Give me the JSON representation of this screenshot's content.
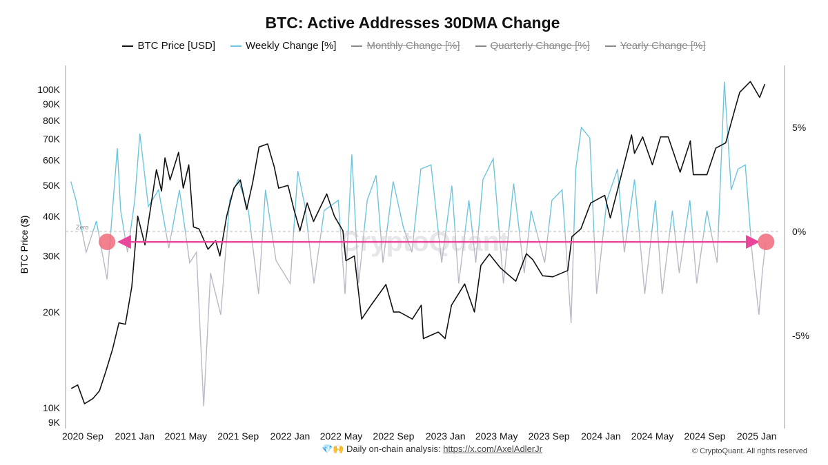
{
  "chart_data": {
    "type": "line",
    "title": "BTC: Active Addresses 30DMA Change",
    "ylabel_left": "BTC Price ($)",
    "y_left_scale": "log",
    "y_left_ticks": [
      "9K",
      "10K",
      "20K",
      "30K",
      "40K",
      "50K",
      "60K",
      "70K",
      "80K",
      "90K",
      "100K"
    ],
    "y_left_tick_values": [
      9000,
      10000,
      20000,
      30000,
      40000,
      50000,
      60000,
      70000,
      80000,
      90000,
      100000
    ],
    "y_left_range": [
      8700,
      119000
    ],
    "y_right_ticks": [
      "5%",
      "0%",
      "-5%"
    ],
    "y_right_tick_values": [
      5,
      0,
      -5
    ],
    "y_right_range": [
      -9.4,
      8
    ],
    "zero_line_label": "Zero",
    "x_ticks": [
      {
        "label": "2020 Sep",
        "date": "2020-09-01"
      },
      {
        "label": "2021 Jan",
        "date": "2021-01-01"
      },
      {
        "label": "2021 May",
        "date": "2021-05-01"
      },
      {
        "label": "2021 Sep",
        "date": "2021-09-01"
      },
      {
        "label": "2022 Jan",
        "date": "2022-01-01"
      },
      {
        "label": "2022 May",
        "date": "2022-05-01"
      },
      {
        "label": "2022 Sep",
        "date": "2022-09-01"
      },
      {
        "label": "2023 Jan",
        "date": "2023-01-01"
      },
      {
        "label": "2023 May",
        "date": "2023-05-01"
      },
      {
        "label": "2023 Sep",
        "date": "2023-09-01"
      },
      {
        "label": "2024 Jan",
        "date": "2024-01-01"
      },
      {
        "label": "2024 May",
        "date": "2024-05-01"
      },
      {
        "label": "2024 Sep",
        "date": "2024-09-01"
      },
      {
        "label": "2025 Jan",
        "date": "2025-01-01"
      }
    ],
    "legend": [
      {
        "name": "BTC Price [USD]",
        "color": "#111111",
        "visible": true
      },
      {
        "name": "Weekly Change [%]",
        "color": "#6cc5dd",
        "visible": true
      },
      {
        "name": "Monthly Change [%]",
        "color": "#8a8a8a",
        "visible": false
      },
      {
        "name": "Quarterly Change [%]",
        "color": "#8a8a8a",
        "visible": false
      },
      {
        "name": "Yearly Change [%]",
        "color": "#8a8a8a",
        "visible": false
      }
    ],
    "legend_position": "top",
    "negative_color": "#b9b9c6",
    "series": [
      {
        "name": "BTC Price [USD]",
        "axis": "left",
        "color": "#111111",
        "points": [
          [
            "2020-08-05",
            11500
          ],
          [
            "2020-08-20",
            11800
          ],
          [
            "2020-09-05",
            10300
          ],
          [
            "2020-09-25",
            10700
          ],
          [
            "2020-10-10",
            11300
          ],
          [
            "2020-10-25",
            13000
          ],
          [
            "2020-11-10",
            15300
          ],
          [
            "2020-11-25",
            18500
          ],
          [
            "2020-12-10",
            18300
          ],
          [
            "2020-12-25",
            24000
          ],
          [
            "2021-01-08",
            40000
          ],
          [
            "2021-01-25",
            32500
          ],
          [
            "2021-02-10",
            45000
          ],
          [
            "2021-02-21",
            56000
          ],
          [
            "2021-03-05",
            48000
          ],
          [
            "2021-03-13",
            61000
          ],
          [
            "2021-03-25",
            52000
          ],
          [
            "2021-04-14",
            63500
          ],
          [
            "2021-04-25",
            49000
          ],
          [
            "2021-05-08",
            58000
          ],
          [
            "2021-05-19",
            37000
          ],
          [
            "2021-06-01",
            36500
          ],
          [
            "2021-06-22",
            31500
          ],
          [
            "2021-07-10",
            33500
          ],
          [
            "2021-07-20",
            30000
          ],
          [
            "2021-08-05",
            40000
          ],
          [
            "2021-08-22",
            49000
          ],
          [
            "2021-09-06",
            52000
          ],
          [
            "2021-09-21",
            42000
          ],
          [
            "2021-10-05",
            51000
          ],
          [
            "2021-10-20",
            66000
          ],
          [
            "2021-11-09",
            67500
          ],
          [
            "2021-11-25",
            57000
          ],
          [
            "2021-12-05",
            49000
          ],
          [
            "2021-12-27",
            50000
          ],
          [
            "2022-01-10",
            42000
          ],
          [
            "2022-01-24",
            36000
          ],
          [
            "2022-02-10",
            44000
          ],
          [
            "2022-02-25",
            38500
          ],
          [
            "2022-03-28",
            47000
          ],
          [
            "2022-04-15",
            40000
          ],
          [
            "2022-05-05",
            36000
          ],
          [
            "2022-05-12",
            29000
          ],
          [
            "2022-06-01",
            30000
          ],
          [
            "2022-06-18",
            19000
          ],
          [
            "2022-07-10",
            21000
          ],
          [
            "2022-08-14",
            24400
          ],
          [
            "2022-09-01",
            20000
          ],
          [
            "2022-09-15",
            20000
          ],
          [
            "2022-10-15",
            19000
          ],
          [
            "2022-11-05",
            21000
          ],
          [
            "2022-11-10",
            16500
          ],
          [
            "2022-12-15",
            17300
          ],
          [
            "2022-12-31",
            16500
          ],
          [
            "2023-01-15",
            21000
          ],
          [
            "2023-02-15",
            24500
          ],
          [
            "2023-03-10",
            20000
          ],
          [
            "2023-03-25",
            28000
          ],
          [
            "2023-04-14",
            30400
          ],
          [
            "2023-05-10",
            27500
          ],
          [
            "2023-06-15",
            25000
          ],
          [
            "2023-07-10",
            30500
          ],
          [
            "2023-07-25",
            29200
          ],
          [
            "2023-08-17",
            26000
          ],
          [
            "2023-09-10",
            25800
          ],
          [
            "2023-10-15",
            27000
          ],
          [
            "2023-10-25",
            34500
          ],
          [
            "2023-11-15",
            36500
          ],
          [
            "2023-12-08",
            44000
          ],
          [
            "2024-01-10",
            46500
          ],
          [
            "2024-01-23",
            39500
          ],
          [
            "2024-02-15",
            52000
          ],
          [
            "2024-03-13",
            72000
          ],
          [
            "2024-03-20",
            63000
          ],
          [
            "2024-04-08",
            71000
          ],
          [
            "2024-05-01",
            58000
          ],
          [
            "2024-05-20",
            71000
          ],
          [
            "2024-06-07",
            71000
          ],
          [
            "2024-07-05",
            55000
          ],
          [
            "2024-07-29",
            69000
          ],
          [
            "2024-08-05",
            54000
          ],
          [
            "2024-09-06",
            54000
          ],
          [
            "2024-09-27",
            65500
          ],
          [
            "2024-10-20",
            68000
          ],
          [
            "2024-11-12",
            88000
          ],
          [
            "2024-11-22",
            98000
          ],
          [
            "2024-12-17",
            106000
          ],
          [
            "2025-01-08",
            94500
          ],
          [
            "2025-01-20",
            104000
          ]
        ]
      },
      {
        "name": "Weekly Change [%]",
        "axis": "right",
        "color": "#6cc5dd",
        "points": [
          [
            "2020-08-04",
            2.4
          ],
          [
            "2020-08-16",
            1.5
          ],
          [
            "2020-09-09",
            -1.0
          ],
          [
            "2020-10-03",
            0.5
          ],
          [
            "2020-10-28",
            -2.3
          ],
          [
            "2020-11-21",
            4.0
          ],
          [
            "2020-11-29",
            1.0
          ],
          [
            "2020-12-15",
            -1.0
          ],
          [
            "2021-01-01",
            1.5
          ],
          [
            "2021-01-13",
            4.7
          ],
          [
            "2021-02-02",
            1.2
          ],
          [
            "2021-02-26",
            2.0
          ],
          [
            "2021-03-22",
            -0.8
          ],
          [
            "2021-04-16",
            2.0
          ],
          [
            "2021-05-10",
            -1.5
          ],
          [
            "2021-05-26",
            -1.0
          ],
          [
            "2021-06-12",
            -8.4
          ],
          [
            "2021-06-28",
            -2.0
          ],
          [
            "2021-07-22",
            -4.0
          ],
          [
            "2021-08-12",
            1.5
          ],
          [
            "2021-09-01",
            2.5
          ],
          [
            "2021-09-25",
            1.0
          ],
          [
            "2021-10-19",
            -3.0
          ],
          [
            "2021-11-04",
            2.0
          ],
          [
            "2021-11-29",
            -1.4
          ],
          [
            "2022-01-01",
            -2.5
          ],
          [
            "2022-01-19",
            2.9
          ],
          [
            "2022-02-05",
            1.2
          ],
          [
            "2022-02-26",
            -2.5
          ],
          [
            "2022-03-22",
            1.0
          ],
          [
            "2022-04-24",
            1.5
          ],
          [
            "2022-05-10",
            -3.0
          ],
          [
            "2022-05-26",
            3.7
          ],
          [
            "2022-06-11",
            -2.5
          ],
          [
            "2022-07-01",
            1.5
          ],
          [
            "2022-07-22",
            2.7
          ],
          [
            "2022-08-07",
            -1.5
          ],
          [
            "2022-08-31",
            2.4
          ],
          [
            "2022-09-24",
            0.2
          ],
          [
            "2022-10-14",
            -1.0
          ],
          [
            "2022-11-04",
            3.0
          ],
          [
            "2022-11-28",
            3.2
          ],
          [
            "2022-12-23",
            -1.5
          ],
          [
            "2023-01-16",
            2.2
          ],
          [
            "2023-02-01",
            -2.5
          ],
          [
            "2023-02-25",
            1.5
          ],
          [
            "2023-03-13",
            -1.5
          ],
          [
            "2023-03-30",
            2.5
          ],
          [
            "2023-04-23",
            3.5
          ],
          [
            "2023-05-17",
            -2.5
          ],
          [
            "2023-06-10",
            2.3
          ],
          [
            "2023-07-05",
            -2.0
          ],
          [
            "2023-07-21",
            1.0
          ],
          [
            "2023-08-22",
            -1.5
          ],
          [
            "2023-09-08",
            1.5
          ],
          [
            "2023-10-02",
            2.0
          ],
          [
            "2023-10-23",
            -4.4
          ],
          [
            "2023-11-03",
            3.0
          ],
          [
            "2023-11-16",
            5.0
          ],
          [
            "2023-12-06",
            4.5
          ],
          [
            "2023-12-22",
            -3.0
          ],
          [
            "2024-01-15",
            1.5
          ],
          [
            "2024-02-09",
            3.0
          ],
          [
            "2024-02-25",
            -1.0
          ],
          [
            "2024-03-20",
            2.5
          ],
          [
            "2024-04-13",
            -3.0
          ],
          [
            "2024-05-08",
            1.5
          ],
          [
            "2024-05-24",
            -3.0
          ],
          [
            "2024-06-17",
            1.0
          ],
          [
            "2024-07-03",
            -2.0
          ],
          [
            "2024-07-28",
            1.5
          ],
          [
            "2024-08-13",
            -2.5
          ],
          [
            "2024-09-06",
            1.0
          ],
          [
            "2024-09-30",
            -1.5
          ],
          [
            "2024-10-17",
            7.2
          ],
          [
            "2024-11-02",
            2.0
          ],
          [
            "2024-11-18",
            3.0
          ],
          [
            "2024-12-05",
            3.2
          ],
          [
            "2024-12-21",
            -1.0
          ],
          [
            "2025-01-06",
            -4.0
          ],
          [
            "2025-01-14",
            -2.0
          ],
          [
            "2025-01-22",
            -0.5
          ]
        ]
      }
    ],
    "annotations": [
      {
        "type": "double-arrow",
        "color": "#e8459b",
        "y_percent": -0.5,
        "from": "2020-11-29",
        "to": "2024-12-31"
      },
      {
        "type": "circle-marker",
        "color": "#f06a7a",
        "date": "2020-10-28",
        "y_percent": -0.5
      },
      {
        "type": "circle-marker",
        "color": "#f06a7a",
        "date": "2025-01-23",
        "y_percent": -0.5
      }
    ]
  },
  "watermark": "CryptoQuant",
  "footer": {
    "emoji": "💎🙌",
    "text": "Daily on-chain analysis: ",
    "link": "https://x.com/AxelAdlerJr",
    "copyright": "© CryptoQuant. All rights reserved"
  }
}
